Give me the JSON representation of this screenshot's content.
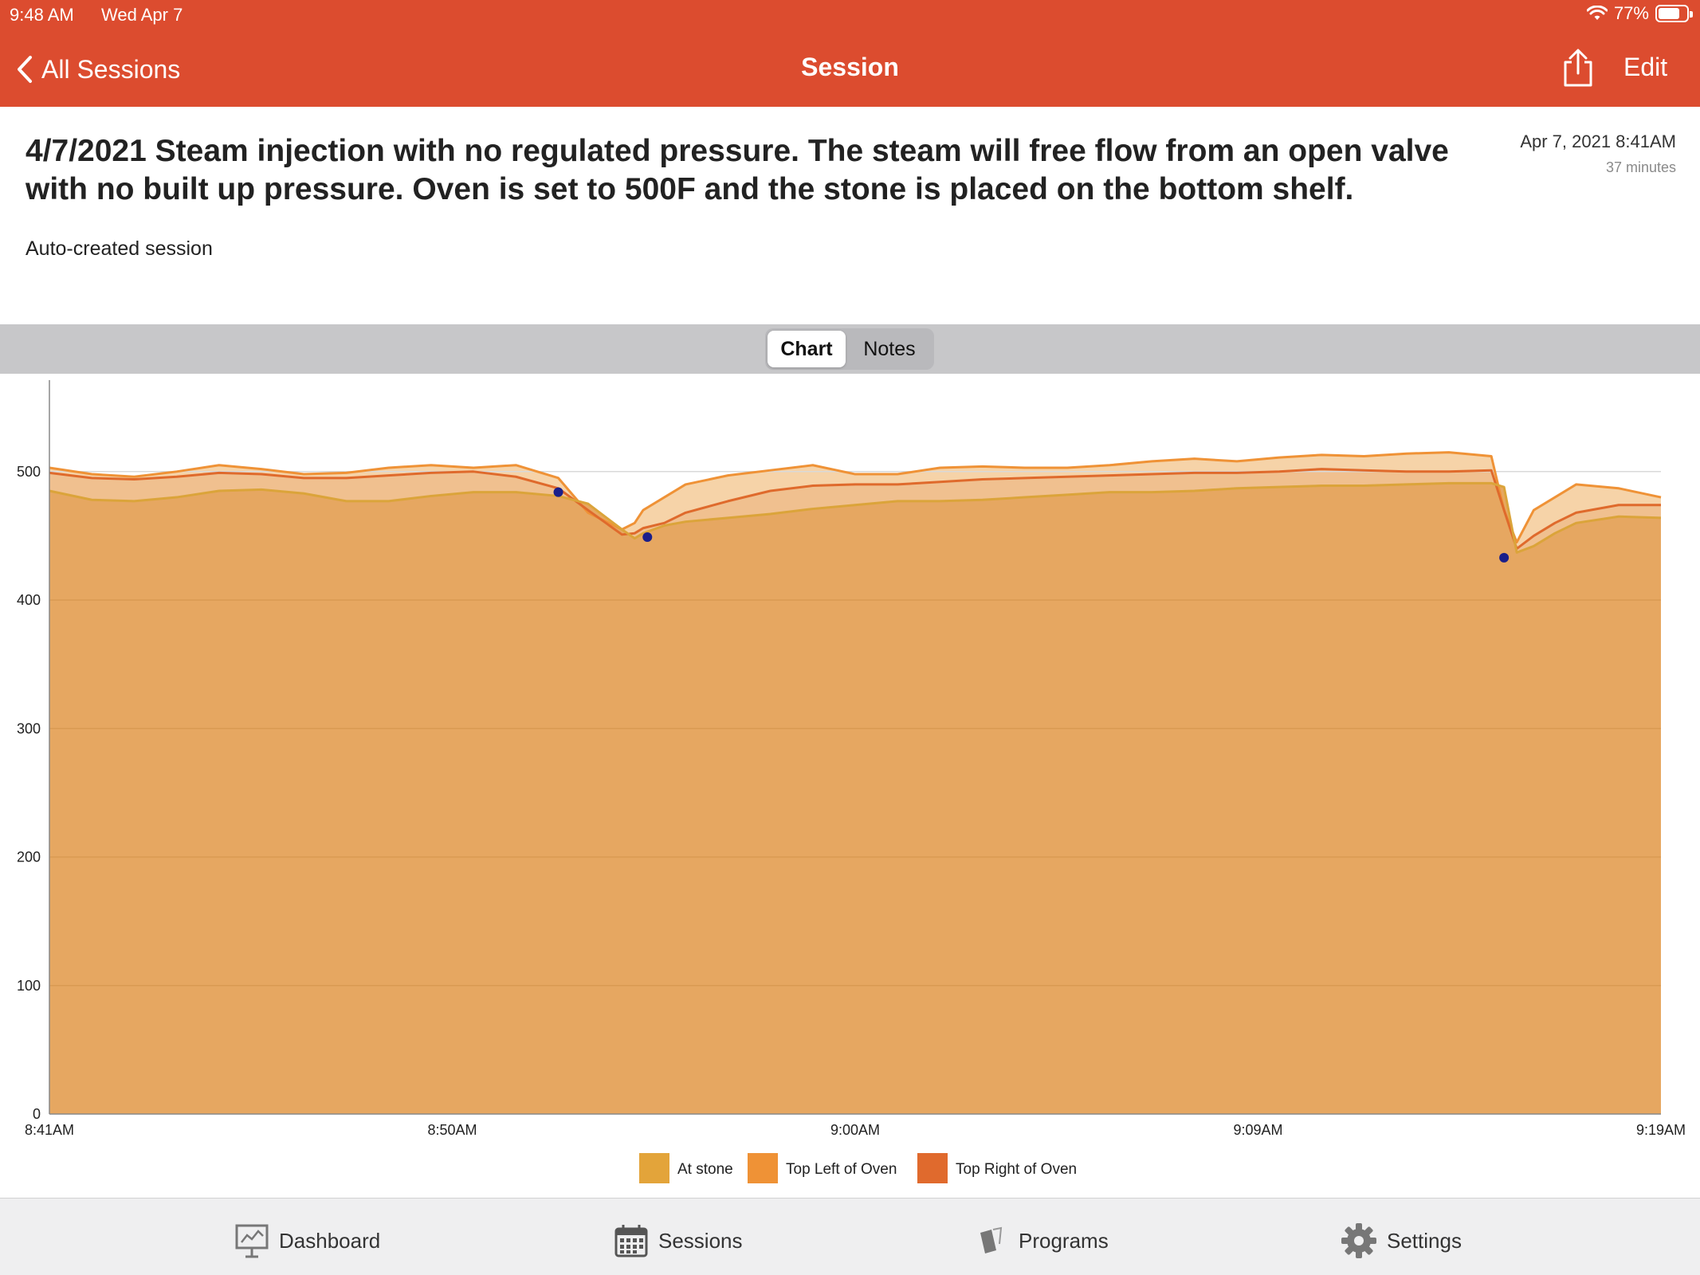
{
  "status_bar": {
    "time": "9:48 AM",
    "date": "Wed Apr 7",
    "battery": "77%",
    "battery_level": 0.77,
    "wifi_icon": "wifi-icon"
  },
  "nav": {
    "back_label": "All Sessions",
    "title": "Session",
    "edit_label": "Edit",
    "share_icon": "share-icon",
    "back_icon": "chevron-left-icon"
  },
  "session": {
    "title": "4/7/2021 Steam injection with no regulated pressure. The steam will free flow from an open valve with no built up pressure. Oven is set to 500F and the stone is placed on the bottom shelf.",
    "date": "Apr 7, 2021 8:41AM",
    "duration": "37 minutes",
    "description": "Auto-created session"
  },
  "tabs": {
    "chart": "Chart",
    "notes": "Notes",
    "selected": "Chart"
  },
  "bottom_tabs": [
    {
      "label": "Dashboard",
      "icon": "dashboard-icon"
    },
    {
      "label": "Sessions",
      "icon": "calendar-icon"
    },
    {
      "label": "Programs",
      "icon": "programs-icon"
    },
    {
      "label": "Settings",
      "icon": "gear-icon"
    }
  ],
  "colors": {
    "header": "#dc4c2f",
    "at_stone": "#dba43a",
    "top_left": "#ef9236",
    "top_right": "#df6a2c"
  },
  "chart_data": {
    "type": "area",
    "title": "",
    "xlabel": "",
    "ylabel": "",
    "x_ticks": [
      "8:41AM",
      "8:50AM",
      "9:00AM",
      "9:09AM",
      "9:19AM"
    ],
    "y_ticks": [
      0,
      100,
      200,
      300,
      400,
      500
    ],
    "ylim": [
      0,
      565
    ],
    "xlim_minutes": [
      0,
      38
    ],
    "grid": true,
    "legend_position": "bottom",
    "x_minutes": [
      0,
      1,
      2,
      3,
      4,
      5,
      6,
      7,
      8,
      9,
      10,
      11,
      12,
      12.7,
      13.5,
      13.8,
      14,
      14.5,
      15,
      16,
      17,
      18,
      19,
      20,
      21,
      22,
      23,
      24,
      25,
      26,
      27,
      28,
      29,
      30,
      31,
      32,
      33,
      34,
      34.3,
      34.6,
      35,
      35.5,
      36,
      37,
      38
    ],
    "series": [
      {
        "name": "At stone",
        "color": "#dba43a",
        "values": [
          485,
          478,
          477,
          480,
          485,
          486,
          483,
          477,
          477,
          481,
          484,
          484,
          481,
          475,
          455,
          448,
          452,
          458,
          461,
          464,
          467,
          471,
          474,
          477,
          477,
          478,
          480,
          482,
          484,
          484,
          485,
          487,
          488,
          489,
          489,
          490,
          491,
          491,
          488,
          437,
          442,
          452,
          460,
          465,
          464
        ]
      },
      {
        "name": "Top Left of Oven",
        "color": "#ef9236",
        "values": [
          503,
          498,
          496,
          500,
          505,
          502,
          498,
          499,
          503,
          505,
          503,
          505,
          495,
          468,
          455,
          460,
          470,
          480,
          490,
          497,
          501,
          505,
          498,
          498,
          503,
          504,
          503,
          503,
          505,
          508,
          510,
          508,
          511,
          513,
          512,
          514,
          515,
          512,
          470,
          445,
          470,
          480,
          490,
          487,
          480
        ]
      },
      {
        "name": "Top Right of Oven",
        "color": "#df6a2c",
        "values": [
          499,
          495,
          494,
          496,
          499,
          498,
          495,
          495,
          497,
          499,
          500,
          496,
          487,
          470,
          451,
          452,
          456,
          460,
          468,
          477,
          485,
          489,
          490,
          490,
          492,
          494,
          495,
          496,
          497,
          498,
          499,
          499,
          500,
          502,
          501,
          500,
          500,
          501,
          470,
          440,
          450,
          460,
          468,
          474,
          474
        ]
      }
    ],
    "markers": [
      {
        "x_minutes": 12,
        "y": 484
      },
      {
        "x_minutes": 14.1,
        "y": 449
      },
      {
        "x_minutes": 34.3,
        "y": 433
      }
    ]
  }
}
